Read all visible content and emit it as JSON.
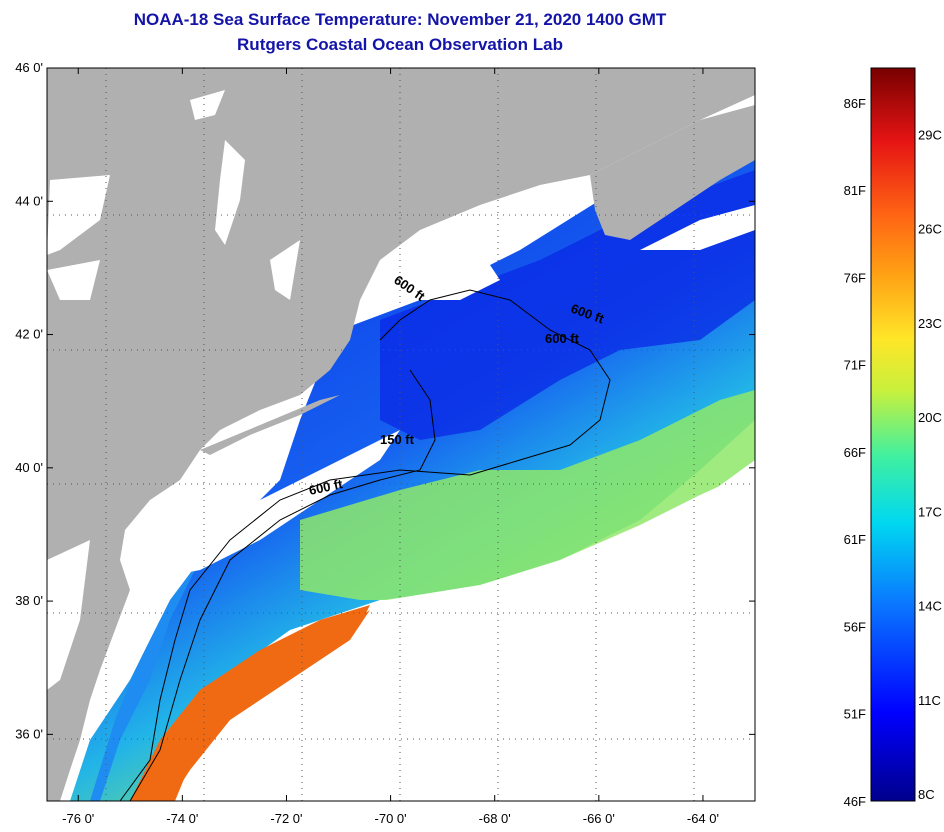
{
  "title": {
    "line1": "NOAA-18 Sea Surface Temperature:  November 21, 2020 1400 GMT",
    "line2": "Rutgers Coastal Ocean Observation Lab"
  },
  "map": {
    "lat_labels": [
      "46 0'",
      "44 0'",
      "42 0'",
      "40 0'",
      "38 0'",
      "36 0'"
    ],
    "lat_values": [
      46,
      44,
      42,
      40,
      38,
      36
    ],
    "lon_labels": [
      "-76 0'",
      "-74 0'",
      "-72 0'",
      "-70 0'",
      "-68 0'",
      "-66 0'",
      "-64 0'"
    ],
    "lon_values": [
      -76,
      -74,
      -72,
      -70,
      -68,
      -66,
      -64
    ],
    "lat_range": [
      35,
      46
    ],
    "lon_range": [
      -76.6,
      -63
    ],
    "contours": [
      {
        "label": "600 ft"
      },
      {
        "label": "600 ft"
      },
      {
        "label": "600 ft"
      },
      {
        "label": "150 ft"
      },
      {
        "label": "600 ft"
      }
    ],
    "colors": {
      "land": "#b0b0b0",
      "cloud": "#ffffff",
      "cold": "#0a28e6",
      "mid": "#1e8cf0",
      "warm": "#e8ee3c",
      "hot": "#f06a14"
    }
  },
  "colorbar": {
    "f_labels": [
      "86F",
      "81F",
      "76F",
      "71F",
      "66F",
      "61F",
      "56F",
      "51F",
      "46F"
    ],
    "c_labels": [
      "29C",
      "26C",
      "23C",
      "20C",
      "17C",
      "14C",
      "11C",
      "8C"
    ],
    "f_values": [
      86,
      81,
      76,
      71,
      66,
      61,
      56,
      51,
      46
    ],
    "c_values": [
      29,
      26,
      23,
      20,
      17,
      14,
      11,
      8
    ],
    "min_f": 46,
    "max_f": 88
  }
}
